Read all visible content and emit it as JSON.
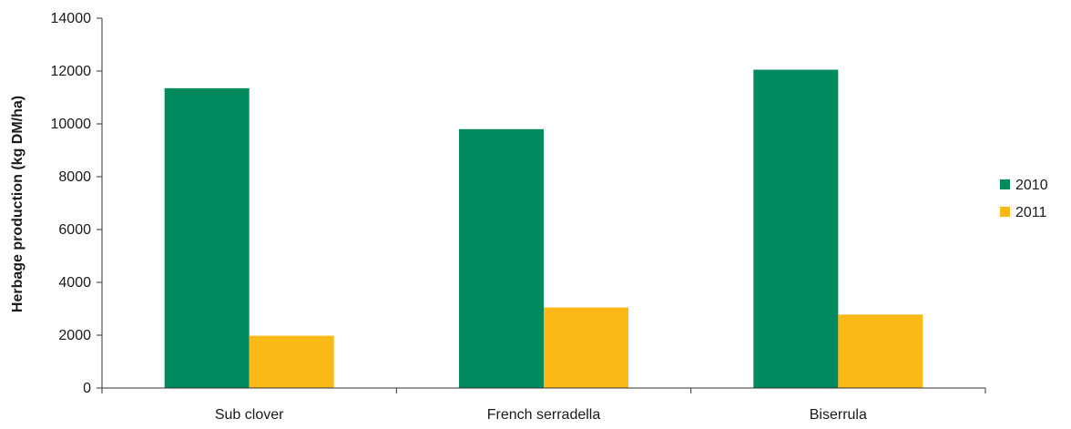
{
  "chart_data": {
    "type": "bar",
    "categories": [
      "Sub clover",
      "French serradella",
      "Biserrula"
    ],
    "series": [
      {
        "name": "2010",
        "values": [
          11350,
          9800,
          12050
        ],
        "color": "#008A5E"
      },
      {
        "name": "2011",
        "values": [
          1980,
          3050,
          2780
        ],
        "color": "#FBB917"
      }
    ],
    "ylabel": "Herbage production (kg DM/ha)",
    "xlabel": "",
    "title": "",
    "ylim": [
      0,
      14000
    ],
    "yticks": [
      0,
      2000,
      4000,
      6000,
      8000,
      10000,
      12000,
      14000
    ],
    "grid": false,
    "legend_position": "right"
  }
}
